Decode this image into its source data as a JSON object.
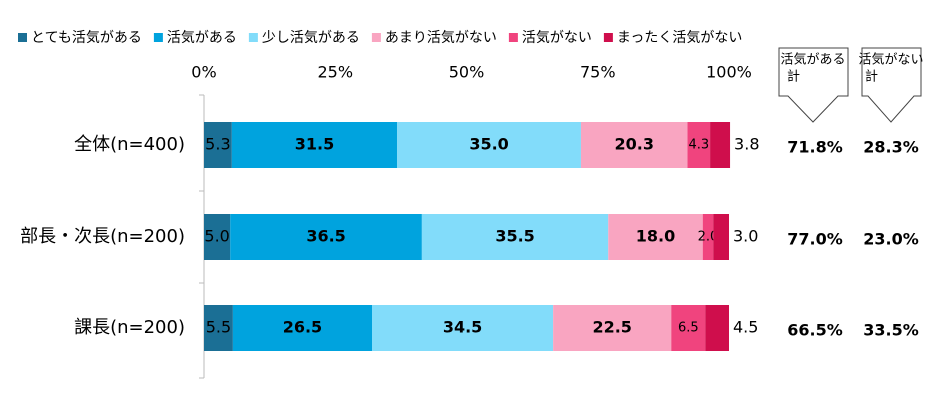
{
  "chart_data": {
    "type": "stacked-barh",
    "categories": [
      "全体(n=400)",
      "部長・次長(n=200)",
      "課長(n=200)"
    ],
    "series": [
      {
        "name": "とても活気がある",
        "color": "#1b6f95",
        "values": [
          5.3,
          5.0,
          5.5
        ],
        "value_labels": [
          "5.3",
          "5.0",
          "5.5"
        ]
      },
      {
        "name": "活気がある",
        "color": "#00a3de",
        "values": [
          31.5,
          36.5,
          26.5
        ],
        "value_labels": [
          "31.5",
          "36.5",
          "26.5"
        ]
      },
      {
        "name": "少し活気がある",
        "color": "#82dcfa",
        "values": [
          35.0,
          35.5,
          34.5
        ],
        "value_labels": [
          "35.0",
          "35.5",
          "34.5"
        ]
      },
      {
        "name": "あまり活気がない",
        "color": "#f9a5c1",
        "values": [
          20.3,
          18.0,
          22.5
        ],
        "value_labels": [
          "20.3",
          "18.0",
          "22.5"
        ]
      },
      {
        "name": "活気がない",
        "color": "#f0447e",
        "values": [
          4.3,
          2.0,
          6.5
        ],
        "value_labels": [
          "4.3",
          "2.0",
          "6.5"
        ]
      },
      {
        "name": "まったく活気がない",
        "color": "#cf0e4c",
        "values": [
          3.8,
          3.0,
          4.5
        ],
        "value_labels": [
          "3.8",
          "3.0",
          "4.5"
        ]
      }
    ],
    "xlim": [
      0,
      100
    ],
    "xticks": [
      {
        "value": 0,
        "label": "0%"
      },
      {
        "value": 25,
        "label": "25%"
      },
      {
        "value": 50,
        "label": "50%"
      },
      {
        "value": 75,
        "label": "75%"
      },
      {
        "value": 100,
        "label": "100%"
      }
    ],
    "totals": [
      {
        "label_lines": [
          "活気がある",
          "計"
        ],
        "values": [
          71.8,
          77.0,
          66.5
        ],
        "value_labels": [
          "71.8%",
          "77.0%",
          "66.5%"
        ]
      },
      {
        "label_lines": [
          "活気がない",
          "計"
        ],
        "values": [
          28.3,
          23.0,
          33.5
        ],
        "value_labels": [
          "28.3%",
          "23.0%",
          "33.5%"
        ]
      }
    ]
  }
}
